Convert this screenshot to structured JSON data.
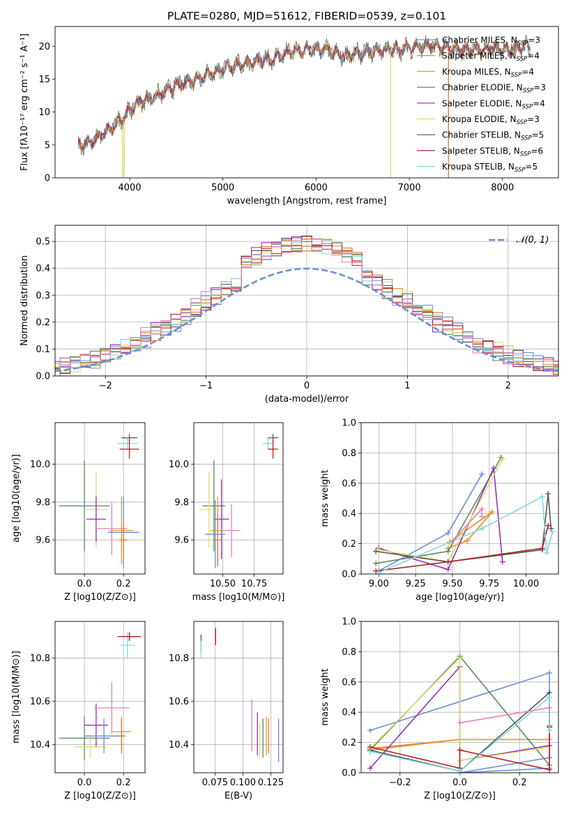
{
  "colors": {
    "chabrier_miles": "#6a8fd8",
    "salpeter_miles": "#e07b28",
    "kroupa_miles": "#e39a2e",
    "chabrier_elodie": "#5a8a5a",
    "salpeter_elodie": "#9a2fb0",
    "kroupa_elodie": "#d8e06a",
    "chabrier_stelib": "#555555",
    "salpeter_stelib": "#b22222",
    "kroupa_stelib": "#80d8e0",
    "pink": "#e880b8",
    "gaussian": "#6a8fd8",
    "grid": "#b0b0b0"
  },
  "chart_data": [
    {
      "id": "spectrum",
      "type": "line",
      "title": "PLATE=0280, MJD=51612, FIBERID=0539, z=0.101",
      "xlabel": "wavelength [Angstrom, rest frame]",
      "ylabel": "Flux [fλ10⁻¹⁷ erg cm⁻² s⁻¹ A⁻¹]",
      "xlim": [
        3200,
        8600
      ],
      "ylim": [
        0,
        23
      ],
      "xticks": [
        "4000",
        "5000",
        "6000",
        "7000",
        "8000"
      ],
      "yticks": [
        "0",
        "5",
        "10",
        "15",
        "20"
      ],
      "legend": [
        "Chabrier MILES, N_SSP=3",
        "Salpeter MILES, N_SSP=4",
        "Kroupa MILES, N_SSP=4",
        "Chabrier ELODIE, N_SSP=3",
        "Salpeter ELODIE, N_SSP=4",
        "Kroupa ELODIE, N_SSP=3",
        "Chabrier STELIB, N_SSP=5",
        "Salpeter STELIB, N_SSP=6",
        "Kroupa STELIB, N_SSP=5"
      ],
      "legend_position": "right",
      "continuum": {
        "x": [
          3450,
          3600,
          3800,
          3950,
          4100,
          4300,
          4500,
          4700,
          4900,
          5100,
          5300,
          5500,
          5700,
          5900,
          6100,
          6300,
          6500,
          6700,
          6900,
          7100,
          7300,
          7500,
          7700,
          8000,
          8300
        ],
        "y": [
          5.0,
          5.5,
          7.5,
          9.5,
          11.5,
          12.5,
          14.0,
          15.0,
          16.0,
          17.0,
          17.5,
          18.0,
          19.0,
          19.5,
          19.5,
          18.5,
          19.0,
          19.5,
          19.5,
          20.0,
          20.0,
          19.5,
          19.5,
          19.5,
          20.0
        ]
      },
      "dips": [
        {
          "x": 3933,
          "y": 0
        },
        {
          "x": 6800,
          "y": 0
        },
        {
          "x": 7420,
          "y": 0
        }
      ]
    },
    {
      "id": "residuals",
      "type": "histogram",
      "xlabel": "(data-model)/error",
      "ylabel": "Normed distribution",
      "xlim": [
        -2.5,
        2.5
      ],
      "ylim": [
        0,
        0.56
      ],
      "xticks": [
        "−2",
        "−1",
        "0",
        "1",
        "2"
      ],
      "yticks": [
        "0.0",
        "0.1",
        "0.2",
        "0.3",
        "0.4",
        "0.5"
      ],
      "legend": [
        "𝒩(0, 1)"
      ],
      "legend_position": "top-right",
      "bin_width": 0.1
    },
    {
      "id": "age_vs_Z",
      "type": "errorbar",
      "xlabel": "Z [log10(Z/Z⊙)]",
      "ylabel": "age  [log10(age/yr)]",
      "xlim": [
        -0.15,
        0.31
      ],
      "ylim": [
        9.42,
        10.22
      ],
      "xticks": [
        "0.0",
        "0.2"
      ],
      "yticks": [
        "9.6",
        "9.8",
        "10.0"
      ],
      "points": [
        {
          "color": "chabrier_elodie",
          "x": 0.0,
          "xerr": 0.13,
          "y": 9.78,
          "yerr": 0.24
        },
        {
          "color": "kroupa_elodie",
          "x": 0.06,
          "xerr": 0.06,
          "y": 9.76,
          "yerr": 0.2
        },
        {
          "color": "salpeter_elodie",
          "x": 0.06,
          "xerr": 0.05,
          "y": 9.71,
          "yerr": 0.12
        },
        {
          "color": "pink",
          "x": 0.14,
          "xerr": 0.08,
          "y": 9.66,
          "yerr": 0.14
        },
        {
          "color": "kroupa_miles",
          "x": 0.19,
          "xerr": 0.06,
          "y": 9.65,
          "yerr": 0.18
        },
        {
          "color": "chabrier_miles",
          "x": 0.2,
          "xerr": 0.08,
          "y": 9.64,
          "yerr": 0.19
        },
        {
          "color": "salpeter_miles",
          "x": 0.2,
          "xerr": 0.02,
          "y": 9.6,
          "yerr": 0.1
        },
        {
          "color": "chabrier_stelib",
          "x": 0.23,
          "xerr": 0.04,
          "y": 10.14,
          "yerr": 0.02
        },
        {
          "color": "kroupa_stelib",
          "x": 0.22,
          "xerr": 0.05,
          "y": 10.11,
          "yerr": 0.03
        },
        {
          "color": "salpeter_stelib",
          "x": 0.23,
          "xerr": 0.05,
          "y": 10.08,
          "yerr": 0.05
        }
      ]
    },
    {
      "id": "age_vs_mass",
      "type": "errorbar",
      "xlabel": "mass [log10(M/M⊙)]",
      "ylabel": "",
      "xlim": [
        10.27,
        10.98
      ],
      "ylim": [
        9.42,
        10.22
      ],
      "xticks": [
        "10.50",
        "10.75"
      ],
      "yticks": [
        "9.6",
        "9.8",
        "10.0"
      ],
      "points": [
        {
          "color": "chabrier_elodie",
          "x": 10.43,
          "xerr": 0.09,
          "y": 9.78,
          "yerr": 0.24
        },
        {
          "color": "kroupa_elodie",
          "x": 10.39,
          "xerr": 0.08,
          "y": 9.76,
          "yerr": 0.2
        },
        {
          "color": "salpeter_elodie",
          "x": 10.49,
          "xerr": 0.06,
          "y": 9.71,
          "yerr": 0.21
        },
        {
          "color": "pink",
          "x": 10.57,
          "xerr": 0.07,
          "y": 9.65,
          "yerr": 0.14
        },
        {
          "color": "kroupa_miles",
          "x": 10.46,
          "xerr": 0.06,
          "y": 9.65,
          "yerr": 0.18
        },
        {
          "color": "chabrier_miles",
          "x": 10.44,
          "xerr": 0.08,
          "y": 9.63,
          "yerr": 0.18
        },
        {
          "color": "salpeter_miles",
          "x": 10.46,
          "xerr": 0.03,
          "y": 9.6,
          "yerr": 0.14
        },
        {
          "color": "chabrier_stelib",
          "x": 10.9,
          "xerr": 0.04,
          "y": 10.14,
          "yerr": 0.02
        },
        {
          "color": "kroupa_stelib",
          "x": 10.86,
          "xerr": 0.04,
          "y": 10.11,
          "yerr": 0.03
        },
        {
          "color": "salpeter_stelib",
          "x": 10.9,
          "xerr": 0.04,
          "y": 10.08,
          "yerr": 0.05
        }
      ]
    },
    {
      "id": "mw_vs_age",
      "type": "line",
      "xlabel": "age  [log10(age/yr)]",
      "ylabel": "mass weight",
      "xlim": [
        8.88,
        10.22
      ],
      "ylim": [
        0,
        1.0
      ],
      "xticks": [
        "9.00",
        "9.25",
        "9.50",
        "9.75",
        "10.00"
      ],
      "yticks": [
        "0.0",
        "0.2",
        "0.4",
        "0.6",
        "0.8",
        "1.0"
      ],
      "series": [
        {
          "color": "chabrier_miles",
          "x": [
            9.0,
            9.47,
            9.7
          ],
          "y": [
            0.02,
            0.27,
            0.66
          ]
        },
        {
          "color": "salpeter_miles",
          "x": [
            9.47,
            9.6,
            9.77,
            9.48
          ],
          "y": [
            0.17,
            0.22,
            0.41,
            0.21
          ]
        },
        {
          "color": "kroupa_miles",
          "x": [
            9.47,
            9.6,
            9.77,
            9.48
          ],
          "y": [
            0.17,
            0.22,
            0.41,
            0.21
          ]
        },
        {
          "color": "chabrier_elodie",
          "x": [
            8.98,
            9.47,
            9.83
          ],
          "y": [
            0.07,
            0.15,
            0.77
          ]
        },
        {
          "color": "salpeter_elodie",
          "x": [
            9.0,
            9.47,
            9.78,
            9.84
          ],
          "y": [
            0.17,
            0.03,
            0.7,
            0.08
          ]
        },
        {
          "color": "kroupa_elodie",
          "x": [
            9.0,
            9.47,
            9.84
          ],
          "y": [
            0.16,
            0.08,
            0.76
          ]
        },
        {
          "color": "chabrier_stelib",
          "x": [
            8.98,
            9.47,
            10.11,
            10.15,
            10.17
          ],
          "y": [
            0.15,
            0.08,
            0.16,
            0.53,
            0.3
          ]
        },
        {
          "color": "salpeter_stelib",
          "x": [
            8.98,
            9.47,
            10.11,
            10.15
          ],
          "y": [
            0.02,
            0.08,
            0.17,
            0.32
          ]
        },
        {
          "color": "kroupa_stelib",
          "x": [
            9.0,
            9.7,
            10.11,
            10.14,
            10.18
          ],
          "y": [
            0.01,
            0.3,
            0.51,
            0.14,
            0.28
          ]
        },
        {
          "color": "pink",
          "x": [
            9.5,
            9.7,
            9.7
          ],
          "y": [
            0.22,
            0.43,
            0.38
          ]
        }
      ]
    },
    {
      "id": "mass_vs_Z",
      "type": "errorbar",
      "xlabel": "Z [log10(Z/Z⊙)]",
      "ylabel": "mass [log10(M/M⊙)]",
      "xlim": [
        -0.15,
        0.31
      ],
      "ylim": [
        10.27,
        10.97
      ],
      "xticks": [
        "0.0",
        "0.2"
      ],
      "yticks": [
        "10.4",
        "10.6",
        "10.8"
      ],
      "points": [
        {
          "color": "chabrier_elodie",
          "x": 0.0,
          "xerr": 0.13,
          "y": 10.43,
          "yerr": 0.1
        },
        {
          "color": "kroupa_elodie",
          "x": 0.03,
          "xerr": 0.08,
          "y": 10.39,
          "yerr": 0.05
        },
        {
          "color": "salpeter_elodie",
          "x": 0.06,
          "xerr": 0.06,
          "y": 10.49,
          "yerr": 0.1
        },
        {
          "color": "pink",
          "x": 0.14,
          "xerr": 0.09,
          "y": 10.57,
          "yerr": 0.12
        },
        {
          "color": "chabrier_miles",
          "x": 0.1,
          "xerr": 0.1,
          "y": 10.44,
          "yerr": 0.08
        },
        {
          "color": "kroupa_miles",
          "x": 0.19,
          "xerr": 0.05,
          "y": 10.46,
          "yerr": 0.07
        },
        {
          "color": "salpeter_miles",
          "x": 0.19,
          "xerr": 0.02,
          "y": 10.44,
          "yerr": 0.08
        },
        {
          "color": "chabrier_stelib",
          "x": 0.23,
          "xerr": 0.04,
          "y": 10.9,
          "yerr": 0.02
        },
        {
          "color": "kroupa_stelib",
          "x": 0.22,
          "xerr": 0.04,
          "y": 10.86,
          "yerr": 0.06
        },
        {
          "color": "salpeter_stelib",
          "x": 0.23,
          "xerr": 0.06,
          "y": 10.9,
          "yerr": 0.02
        }
      ]
    },
    {
      "id": "mass_vs_ebv",
      "type": "errorbar",
      "xlabel": "E(B-V)",
      "ylabel": "",
      "xlim": [
        0.056,
        0.136
      ],
      "ylim": [
        10.27,
        10.97
      ],
      "xticks": [
        "0.075",
        "0.100",
        "0.125"
      ],
      "yticks": [
        "10.4",
        "10.6",
        "10.8"
      ],
      "points": [
        {
          "color": "chabrier_stelib",
          "x": 0.0625,
          "xerr": 0,
          "y": 10.87,
          "yerr": 0.04
        },
        {
          "color": "kroupa_stelib",
          "x": 0.0625,
          "xerr": 0,
          "y": 10.84,
          "yerr": 0.04
        },
        {
          "color": "salpeter_stelib",
          "x": 0.0755,
          "xerr": 0,
          "y": 10.9,
          "yerr": 0.04
        },
        {
          "color": "pink",
          "x": 0.108,
          "xerr": 0,
          "y": 10.49,
          "yerr": 0.12
        },
        {
          "color": "kroupa_elodie",
          "x": 0.115,
          "xerr": 0,
          "y": 10.42,
          "yerr": 0.08
        },
        {
          "color": "chabrier_elodie",
          "x": 0.118,
          "xerr": 0,
          "y": 10.43,
          "yerr": 0.09
        },
        {
          "color": "salpeter_elodie",
          "x": 0.113,
          "xerr": 0,
          "y": 10.45,
          "yerr": 0.1
        },
        {
          "color": "kroupa_miles",
          "x": 0.121,
          "xerr": 0,
          "y": 10.44,
          "yerr": 0.09
        },
        {
          "color": "salpeter_miles",
          "x": 0.123,
          "xerr": 0,
          "y": 10.44,
          "yerr": 0.08
        },
        {
          "color": "chabrier_miles",
          "x": 0.132,
          "xerr": 0,
          "y": 10.42,
          "yerr": 0.1
        }
      ]
    },
    {
      "id": "mw_vs_Z",
      "type": "line",
      "xlabel": "Z [log10(Z/Z⊙)]",
      "ylabel": "mass weight",
      "xlim": [
        -0.33,
        0.33
      ],
      "ylim": [
        0,
        1.0
      ],
      "xticks": [
        "−0.2",
        "0.0",
        "0.2"
      ],
      "yticks": [
        "0.0",
        "0.2",
        "0.4",
        "0.6",
        "0.8",
        "1.0"
      ],
      "series": [
        {
          "color": "chabrier_miles",
          "x": [
            -0.3,
            0.3,
            0.3,
            0.0,
            0.3
          ],
          "y": [
            0.28,
            0.66,
            0.03,
            0.0,
            0.1
          ]
        },
        {
          "color": "salpeter_miles",
          "x": [
            -0.3,
            0.0,
            0.3,
            0.3
          ],
          "y": [
            0.16,
            0.22,
            0.22,
            0.3
          ]
        },
        {
          "color": "kroupa_miles",
          "x": [
            -0.3,
            0.0,
            0.3
          ],
          "y": [
            0.15,
            0.22,
            0.22
          ]
        },
        {
          "color": "chabrier_elodie",
          "x": [
            -0.3,
            0.0,
            0.3
          ],
          "y": [
            0.15,
            0.77,
            0.05
          ]
        },
        {
          "color": "salpeter_elodie",
          "x": [
            -0.3,
            0.0,
            0.0,
            0.3
          ],
          "y": [
            0.03,
            0.7,
            0.08,
            0.18
          ]
        },
        {
          "color": "kroupa_elodie",
          "x": [
            -0.3,
            0.0,
            0.0,
            0.3
          ],
          "y": [
            0.16,
            0.76,
            0.08,
            0.17
          ]
        },
        {
          "color": "chabrier_stelib",
          "x": [
            -0.3,
            0.0,
            0.3,
            0.3
          ],
          "y": [
            0.15,
            0.01,
            0.53,
            0.3
          ]
        },
        {
          "color": "salpeter_stelib",
          "x": [
            -0.3,
            0.0,
            0.0,
            0.3,
            0.3
          ],
          "y": [
            0.17,
            0.03,
            0.15,
            0.02,
            0.31
          ]
        },
        {
          "color": "kroupa_stelib",
          "x": [
            -0.3,
            0.0,
            0.3,
            0.3
          ],
          "y": [
            0.14,
            0.01,
            0.5,
            0.28
          ]
        },
        {
          "color": "pink",
          "x": [
            0.0,
            0.3
          ],
          "y": [
            0.33,
            0.43
          ]
        }
      ]
    }
  ]
}
